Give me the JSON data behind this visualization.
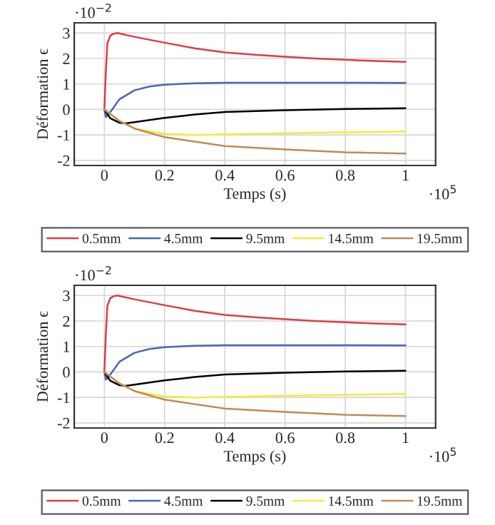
{
  "chart_data": [
    {
      "type": "line",
      "xlabel": "Temps (s)",
      "ylabel": "Déformation ϵ",
      "annotations": [
        "·10$^{−2}$",
        "·10$^{5}$"
      ],
      "xlim": [
        -0.1,
        1.1
      ],
      "ylim": [
        -2.2,
        3.4
      ],
      "xticks": [
        0,
        0.2,
        0.4,
        0.6,
        0.8,
        1
      ],
      "yticks": [
        -2,
        -1,
        0,
        1,
        2,
        3
      ],
      "grid": true,
      "legend": "bottom",
      "marker": "none",
      "line_style": "solid",
      "series": [
        {
          "name": "0.5mm",
          "color": "#e03a45",
          "x": [
            0,
            0.005,
            0.01,
            0.02,
            0.03,
            0.043,
            0.1,
            0.2,
            0.3,
            0.4,
            0.5,
            0.6,
            0.7,
            0.8,
            0.9,
            1.0
          ],
          "values": [
            0,
            1.5,
            2.6,
            2.9,
            2.97,
            3.0,
            2.85,
            2.62,
            2.4,
            2.24,
            2.15,
            2.07,
            2.0,
            1.95,
            1.9,
            1.87
          ]
        },
        {
          "name": "4.5mm",
          "color": "#4a65b5",
          "x": [
            0,
            0.005,
            0.02,
            0.05,
            0.1,
            0.15,
            0.2,
            0.3,
            0.4,
            0.6,
            0.8,
            1.0
          ],
          "values": [
            0,
            -0.3,
            -0.1,
            0.4,
            0.75,
            0.9,
            0.97,
            1.03,
            1.05,
            1.05,
            1.05,
            1.04
          ]
        },
        {
          "name": "9.5mm",
          "color": "#000000",
          "x": [
            0,
            0.02,
            0.05,
            0.07,
            0.1,
            0.2,
            0.3,
            0.4,
            0.6,
            0.8,
            1.0
          ],
          "values": [
            0,
            -0.35,
            -0.52,
            -0.55,
            -0.5,
            -0.33,
            -0.2,
            -0.1,
            -0.03,
            0.02,
            0.05
          ]
        },
        {
          "name": "14.5mm",
          "color": "#f0ec3a",
          "x": [
            0,
            0.05,
            0.1,
            0.2,
            0.3,
            0.4,
            0.6,
            0.8,
            1.0
          ],
          "values": [
            0,
            -0.45,
            -0.75,
            -0.96,
            -1.0,
            -0.98,
            -0.93,
            -0.9,
            -0.86
          ]
        },
        {
          "name": "19.5mm",
          "color": "#c08a55",
          "x": [
            0,
            0.05,
            0.1,
            0.2,
            0.4,
            0.6,
            0.8,
            1.0
          ],
          "values": [
            0,
            -0.45,
            -0.75,
            -1.09,
            -1.44,
            -1.57,
            -1.68,
            -1.73
          ]
        }
      ]
    },
    {
      "type": "line",
      "xlabel": "Temps (s)",
      "ylabel": "Déformation ϵ",
      "annotations": [
        "·10$^{−2}$",
        "·10$^{5}$"
      ],
      "xlim": [
        -0.1,
        1.1
      ],
      "ylim": [
        -2.2,
        3.4
      ],
      "xticks": [
        0,
        0.2,
        0.4,
        0.6,
        0.8,
        1
      ],
      "yticks": [
        -2,
        -1,
        0,
        1,
        2,
        3
      ],
      "grid": true,
      "legend": "bottom",
      "marker": "none",
      "line_style": "solid",
      "series": [
        {
          "name": "0.5mm",
          "color": "#e03a45",
          "x": [
            0,
            0.005,
            0.01,
            0.02,
            0.03,
            0.043,
            0.1,
            0.2,
            0.3,
            0.4,
            0.5,
            0.6,
            0.7,
            0.8,
            0.9,
            1.0
          ],
          "values": [
            0,
            1.5,
            2.6,
            2.9,
            2.97,
            3.0,
            2.85,
            2.62,
            2.4,
            2.24,
            2.15,
            2.07,
            2.0,
            1.95,
            1.9,
            1.87
          ]
        },
        {
          "name": "4.5mm",
          "color": "#4a65b5",
          "x": [
            0,
            0.005,
            0.02,
            0.05,
            0.1,
            0.15,
            0.2,
            0.3,
            0.4,
            0.6,
            0.8,
            1.0
          ],
          "values": [
            0,
            -0.3,
            -0.1,
            0.4,
            0.75,
            0.9,
            0.97,
            1.03,
            1.05,
            1.05,
            1.05,
            1.04
          ]
        },
        {
          "name": "9.5mm",
          "color": "#000000",
          "x": [
            0,
            0.02,
            0.05,
            0.07,
            0.1,
            0.2,
            0.3,
            0.4,
            0.6,
            0.8,
            1.0
          ],
          "values": [
            0,
            -0.35,
            -0.52,
            -0.55,
            -0.5,
            -0.33,
            -0.2,
            -0.1,
            -0.03,
            0.02,
            0.05
          ]
        },
        {
          "name": "14.5mm",
          "color": "#f0ec3a",
          "x": [
            0,
            0.05,
            0.1,
            0.2,
            0.3,
            0.4,
            0.6,
            0.8,
            1.0
          ],
          "values": [
            0,
            -0.45,
            -0.75,
            -0.96,
            -1.0,
            -0.98,
            -0.93,
            -0.9,
            -0.86
          ]
        },
        {
          "name": "19.5mm",
          "color": "#c08a55",
          "x": [
            0,
            0.05,
            0.1,
            0.2,
            0.4,
            0.6,
            0.8,
            1.0
          ],
          "values": [
            0,
            -0.45,
            -0.75,
            -1.09,
            -1.44,
            -1.57,
            -1.68,
            -1.73
          ]
        }
      ]
    }
  ]
}
